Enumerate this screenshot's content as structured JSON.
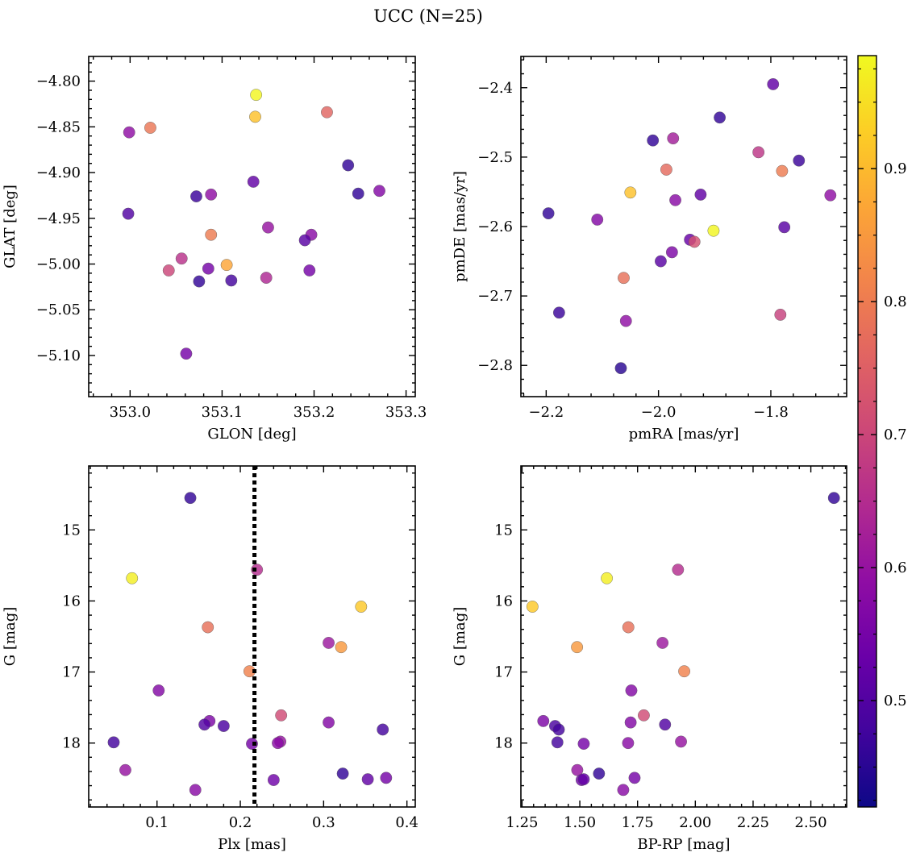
{
  "figure": {
    "title": "UCC (N=25)"
  },
  "colorbar": {
    "colormap": "plasma",
    "range": [
      0.42,
      0.985
    ],
    "ticks": [
      "0.5",
      "0.6",
      "0.7",
      "0.8",
      "0.9"
    ],
    "tick_values": [
      0.5,
      0.6,
      0.7,
      0.8,
      0.9
    ]
  },
  "chart_data": [
    {
      "type": "scatter",
      "id": "glon-glat",
      "xlabel": "GLON [deg]",
      "ylabel": "GLAT [deg]",
      "xlim": [
        352.955,
        353.31
      ],
      "ylim": [
        -5.145,
        -4.773
      ],
      "ylim_inverted": false,
      "xticks": [
        353.0,
        353.1,
        353.2,
        353.3
      ],
      "xtick_labels": [
        "353.0",
        "353.1",
        "353.2",
        "353.3"
      ],
      "yticks": [
        -4.8,
        -4.85,
        -4.9,
        -4.95,
        -5.0,
        -5.05,
        -5.1
      ],
      "ytick_labels": [
        "−4.80",
        "−4.85",
        "−4.90",
        "−4.95",
        "−5.00",
        "−5.05",
        "−5.10"
      ],
      "points": [
        {
          "x": 353.137,
          "y": -4.815,
          "c": 0.98
        },
        {
          "x": 353.136,
          "y": -4.839,
          "c": 0.91
        },
        {
          "x": 353.214,
          "y": -4.834,
          "c": 0.76
        },
        {
          "x": 353.022,
          "y": -4.851,
          "c": 0.79
        },
        {
          "x": 352.999,
          "y": -4.856,
          "c": 0.59
        },
        {
          "x": 353.237,
          "y": -4.892,
          "c": 0.46
        },
        {
          "x": 353.248,
          "y": -4.923,
          "c": 0.46
        },
        {
          "x": 353.271,
          "y": -4.92,
          "c": 0.57
        },
        {
          "x": 353.134,
          "y": -4.91,
          "c": 0.52
        },
        {
          "x": 353.072,
          "y": -4.926,
          "c": 0.47
        },
        {
          "x": 353.088,
          "y": -4.924,
          "c": 0.59
        },
        {
          "x": 352.998,
          "y": -4.945,
          "c": 0.5
        },
        {
          "x": 353.15,
          "y": -4.96,
          "c": 0.6
        },
        {
          "x": 353.088,
          "y": -4.968,
          "c": 0.8
        },
        {
          "x": 353.197,
          "y": -4.968,
          "c": 0.58
        },
        {
          "x": 353.19,
          "y": -4.974,
          "c": 0.51
        },
        {
          "x": 353.056,
          "y": -4.994,
          "c": 0.66
        },
        {
          "x": 353.105,
          "y": -5.001,
          "c": 0.87
        },
        {
          "x": 353.085,
          "y": -5.005,
          "c": 0.55
        },
        {
          "x": 353.042,
          "y": -5.007,
          "c": 0.7
        },
        {
          "x": 353.195,
          "y": -5.007,
          "c": 0.55
        },
        {
          "x": 353.148,
          "y": -5.015,
          "c": 0.64
        },
        {
          "x": 353.11,
          "y": -5.018,
          "c": 0.48
        },
        {
          "x": 353.075,
          "y": -5.019,
          "c": 0.46
        },
        {
          "x": 353.061,
          "y": -5.098,
          "c": 0.55
        }
      ]
    },
    {
      "type": "scatter",
      "id": "pmra-pmde",
      "xlabel": "pmRA [mas/yr]",
      "ylabel": "pmDE [mas/yr]",
      "xlim": [
        -2.245,
        -1.665
      ],
      "ylim": [
        -2.845,
        -2.355
      ],
      "ylim_inverted": false,
      "xticks": [
        -2.2,
        -2.0,
        -1.8
      ],
      "xtick_labels": [
        "−2.2",
        "−2.0",
        "−1.8"
      ],
      "yticks": [
        -2.4,
        -2.5,
        -2.6,
        -2.7,
        -2.8
      ],
      "ytick_labels": [
        "−2.4",
        "−2.5",
        "−2.6",
        "−2.7",
        "−2.8"
      ],
      "points": [
        {
          "x": -1.796,
          "y": -2.395,
          "c": 0.52
        },
        {
          "x": -1.891,
          "y": -2.443,
          "c": 0.46
        },
        {
          "x": -2.01,
          "y": -2.476,
          "c": 0.46
        },
        {
          "x": -1.974,
          "y": -2.473,
          "c": 0.62
        },
        {
          "x": -1.822,
          "y": -2.493,
          "c": 0.67
        },
        {
          "x": -1.986,
          "y": -2.518,
          "c": 0.77
        },
        {
          "x": -1.78,
          "y": -2.52,
          "c": 0.8
        },
        {
          "x": -1.75,
          "y": -2.505,
          "c": 0.47
        },
        {
          "x": -2.05,
          "y": -2.551,
          "c": 0.91
        },
        {
          "x": -1.925,
          "y": -2.554,
          "c": 0.52
        },
        {
          "x": -1.97,
          "y": -2.562,
          "c": 0.58
        },
        {
          "x": -1.694,
          "y": -2.555,
          "c": 0.59
        },
        {
          "x": -2.196,
          "y": -2.581,
          "c": 0.46
        },
        {
          "x": -2.109,
          "y": -2.59,
          "c": 0.57
        },
        {
          "x": -1.776,
          "y": -2.601,
          "c": 0.51
        },
        {
          "x": -1.902,
          "y": -2.606,
          "c": 0.98
        },
        {
          "x": -1.944,
          "y": -2.619,
          "c": 0.53
        },
        {
          "x": -1.936,
          "y": -2.622,
          "c": 0.72
        },
        {
          "x": -1.976,
          "y": -2.637,
          "c": 0.56
        },
        {
          "x": -1.996,
          "y": -2.65,
          "c": 0.51
        },
        {
          "x": -2.062,
          "y": -2.674,
          "c": 0.78
        },
        {
          "x": -2.177,
          "y": -2.724,
          "c": 0.47
        },
        {
          "x": -1.783,
          "y": -2.727,
          "c": 0.69
        },
        {
          "x": -2.058,
          "y": -2.736,
          "c": 0.59
        },
        {
          "x": -2.067,
          "y": -2.804,
          "c": 0.45
        }
      ]
    },
    {
      "type": "scatter",
      "id": "plx-g",
      "xlabel": "Plx [mas]",
      "ylabel": "G [mag]",
      "xlim": [
        0.018,
        0.41
      ],
      "ylim": [
        14.1,
        18.9
      ],
      "ylim_inverted": true,
      "xticks": [
        0.1,
        0.2,
        0.3,
        0.4
      ],
      "xtick_labels": [
        "0.1",
        "0.2",
        "0.3",
        "0.4"
      ],
      "yticks": [
        15,
        16,
        17,
        18
      ],
      "ytick_labels": [
        "15",
        "16",
        "17",
        "18"
      ],
      "vline": {
        "x": 0.217,
        "style": "dotted"
      },
      "points": [
        {
          "x": 0.14,
          "y": 14.55,
          "c": 0.46
        },
        {
          "x": 0.22,
          "y": 15.56,
          "c": 0.65
        },
        {
          "x": 0.07,
          "y": 15.68,
          "c": 0.97
        },
        {
          "x": 0.345,
          "y": 16.08,
          "c": 0.92
        },
        {
          "x": 0.161,
          "y": 16.37,
          "c": 0.78
        },
        {
          "x": 0.306,
          "y": 16.59,
          "c": 0.61
        },
        {
          "x": 0.321,
          "y": 16.65,
          "c": 0.85
        },
        {
          "x": 0.211,
          "y": 16.99,
          "c": 0.81
        },
        {
          "x": 0.102,
          "y": 17.26,
          "c": 0.57
        },
        {
          "x": 0.249,
          "y": 17.61,
          "c": 0.71
        },
        {
          "x": 0.163,
          "y": 17.69,
          "c": 0.56
        },
        {
          "x": 0.306,
          "y": 17.71,
          "c": 0.57
        },
        {
          "x": 0.157,
          "y": 17.74,
          "c": 0.5
        },
        {
          "x": 0.18,
          "y": 17.76,
          "c": 0.49
        },
        {
          "x": 0.371,
          "y": 17.81,
          "c": 0.48
        },
        {
          "x": 0.048,
          "y": 17.99,
          "c": 0.48
        },
        {
          "x": 0.248,
          "y": 17.98,
          "c": 0.6
        },
        {
          "x": 0.245,
          "y": 18.0,
          "c": 0.58
        },
        {
          "x": 0.214,
          "y": 18.01,
          "c": 0.55
        },
        {
          "x": 0.062,
          "y": 18.38,
          "c": 0.6
        },
        {
          "x": 0.323,
          "y": 18.43,
          "c": 0.46
        },
        {
          "x": 0.24,
          "y": 18.52,
          "c": 0.54
        },
        {
          "x": 0.353,
          "y": 18.51,
          "c": 0.52
        },
        {
          "x": 0.375,
          "y": 18.49,
          "c": 0.55
        },
        {
          "x": 0.146,
          "y": 18.66,
          "c": 0.58
        }
      ]
    },
    {
      "type": "scatter",
      "id": "bprp-g",
      "xlabel": "BP-RP [mag]",
      "ylabel": "G [mag]",
      "xlim": [
        1.245,
        2.655
      ],
      "ylim": [
        14.1,
        18.9
      ],
      "ylim_inverted": true,
      "xticks": [
        1.25,
        1.5,
        1.75,
        2.0,
        2.25,
        2.5
      ],
      "xtick_labels": [
        "1.25",
        "1.50",
        "1.75",
        "2.00",
        "2.25",
        "2.50"
      ],
      "yticks": [
        15,
        16,
        17,
        18
      ],
      "ytick_labels": [
        "15",
        "16",
        "17",
        "18"
      ],
      "points": [
        {
          "x": 2.6,
          "y": 14.55,
          "c": 0.46
        },
        {
          "x": 1.925,
          "y": 15.56,
          "c": 0.65
        },
        {
          "x": 1.617,
          "y": 15.68,
          "c": 0.97
        },
        {
          "x": 1.295,
          "y": 16.08,
          "c": 0.92
        },
        {
          "x": 1.71,
          "y": 16.37,
          "c": 0.78
        },
        {
          "x": 1.858,
          "y": 16.59,
          "c": 0.61
        },
        {
          "x": 1.488,
          "y": 16.65,
          "c": 0.85
        },
        {
          "x": 1.952,
          "y": 16.99,
          "c": 0.81
        },
        {
          "x": 1.723,
          "y": 17.26,
          "c": 0.57
        },
        {
          "x": 1.777,
          "y": 17.61,
          "c": 0.71
        },
        {
          "x": 1.342,
          "y": 17.69,
          "c": 0.56
        },
        {
          "x": 1.72,
          "y": 17.71,
          "c": 0.57
        },
        {
          "x": 1.869,
          "y": 17.74,
          "c": 0.5
        },
        {
          "x": 1.393,
          "y": 17.76,
          "c": 0.49
        },
        {
          "x": 1.409,
          "y": 17.81,
          "c": 0.48
        },
        {
          "x": 1.403,
          "y": 17.99,
          "c": 0.48
        },
        {
          "x": 1.938,
          "y": 17.98,
          "c": 0.6
        },
        {
          "x": 1.709,
          "y": 18.0,
          "c": 0.58
        },
        {
          "x": 1.517,
          "y": 18.01,
          "c": 0.55
        },
        {
          "x": 1.489,
          "y": 18.38,
          "c": 0.6
        },
        {
          "x": 1.583,
          "y": 18.43,
          "c": 0.46
        },
        {
          "x": 1.508,
          "y": 18.52,
          "c": 0.54
        },
        {
          "x": 1.517,
          "y": 18.51,
          "c": 0.52
        },
        {
          "x": 1.737,
          "y": 18.49,
          "c": 0.55
        },
        {
          "x": 1.688,
          "y": 18.66,
          "c": 0.58
        }
      ]
    }
  ]
}
